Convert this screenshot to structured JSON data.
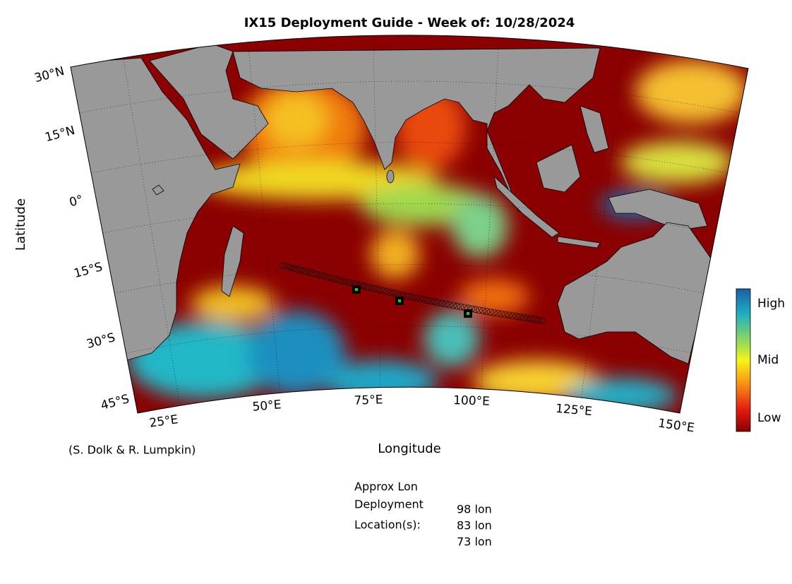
{
  "title": "IX15 Deployment Guide - Week of: 10/28/2024",
  "map": {
    "x_label": "Longitude",
    "y_label": "Latitude",
    "lat_labels": [
      "30°N",
      "15°N",
      "0°",
      "15°S",
      "30°S",
      "45°S"
    ],
    "lon_labels": [
      "25°E",
      "50°E",
      "75°E",
      "100°E",
      "125°E",
      "150°E"
    ]
  },
  "colorbar": {
    "labels": [
      "High",
      "Mid",
      "Low"
    ]
  },
  "credit": "(S. Dolk & R. Lumpkin)",
  "deployment": {
    "heading": [
      "Approx Lon",
      "Deployment",
      "Location(s):"
    ],
    "locations": [
      "98 lon",
      "83 lon",
      "73 lon"
    ]
  }
}
